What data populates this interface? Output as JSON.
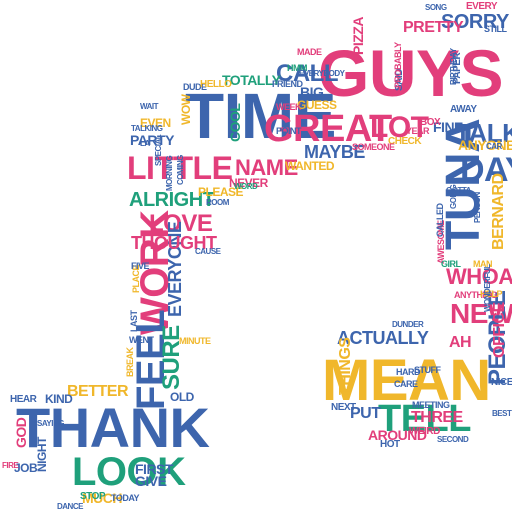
{
  "palette": [
    "#3d65ad",
    "#e23e7b",
    "#f0b72b",
    "#1fa07b",
    "#6b3d98",
    "#e7457a"
  ],
  "words": [
    {
      "text": "TIME",
      "c": 0
    },
    {
      "text": "GUYS",
      "c": 1
    },
    {
      "text": "THANK",
      "c": 0
    },
    {
      "text": "MEAN",
      "c": 2
    },
    {
      "text": "GREAT",
      "c": 1
    },
    {
      "text": "TUNA",
      "c": 0
    },
    {
      "text": "LOT",
      "c": 1
    },
    {
      "text": "LOOK",
      "c": 3
    },
    {
      "text": "WORK",
      "c": 1
    },
    {
      "text": "TELL",
      "c": 3
    },
    {
      "text": "FEEL",
      "c": 0
    },
    {
      "text": "LITTLE",
      "c": 1
    },
    {
      "text": "DAY",
      "c": 0
    },
    {
      "text": "TALK",
      "c": 0
    },
    {
      "text": "NEW",
      "c": 1
    },
    {
      "text": "NAME",
      "c": 1
    },
    {
      "text": "LOVE",
      "c": 1
    },
    {
      "text": "SORRY",
      "c": 0
    },
    {
      "text": "CALL",
      "c": 0
    },
    {
      "text": "WHOA",
      "c": 1
    },
    {
      "text": "PEOPLE",
      "c": 0
    },
    {
      "text": "ACTUALLY",
      "c": 0
    },
    {
      "text": "SURE",
      "c": 3
    },
    {
      "text": "EVERYONE",
      "c": 0
    },
    {
      "text": "ALRIGHT",
      "c": 3
    },
    {
      "text": "THOUGHT",
      "c": 1
    },
    {
      "text": "MAYBE",
      "c": 0
    },
    {
      "text": "PRETTY",
      "c": 1
    },
    {
      "text": "BERNARD",
      "c": 2
    },
    {
      "text": "OFFICE",
      "c": 1
    },
    {
      "text": "PIZZA",
      "c": 1
    },
    {
      "text": "THREE",
      "c": 1
    },
    {
      "text": "PUT",
      "c": 0
    },
    {
      "text": "AROUND",
      "c": 1
    },
    {
      "text": "FIRST",
      "c": 0
    },
    {
      "text": "GIVE",
      "c": 0
    },
    {
      "text": "BETTER",
      "c": 2
    },
    {
      "text": "MUCH",
      "c": 2
    },
    {
      "text": "THINGS",
      "c": 2
    },
    {
      "text": "TOTALLY",
      "c": 3
    },
    {
      "text": "PARTY",
      "c": 0
    },
    {
      "text": "COOL",
      "c": 3
    },
    {
      "text": "ANYONE",
      "c": 2
    },
    {
      "text": "BIG",
      "c": 0
    },
    {
      "text": "GUESS",
      "c": 2
    },
    {
      "text": "WANTED",
      "c": 2
    },
    {
      "text": "PLEASE",
      "c": 2
    },
    {
      "text": "NEVER",
      "c": 1
    },
    {
      "text": "FINE",
      "c": 0
    },
    {
      "text": "KIND",
      "c": 0
    },
    {
      "text": "GOD",
      "c": 1
    },
    {
      "text": "HEAR",
      "c": 0
    },
    {
      "text": "JOB",
      "c": 0
    },
    {
      "text": "NIGHT",
      "c": 0
    },
    {
      "text": "NEXT",
      "c": 0
    },
    {
      "text": "OLD",
      "c": 0
    },
    {
      "text": "EVEN",
      "c": 2
    },
    {
      "text": "DUDE",
      "c": 0
    },
    {
      "text": "HELLO",
      "c": 2
    },
    {
      "text": "FRIEND",
      "c": 0
    },
    {
      "text": "EVERY",
      "c": 1
    },
    {
      "text": "WOW",
      "c": 2
    },
    {
      "text": "CHECK",
      "c": 2
    },
    {
      "text": "POINT",
      "c": 0
    },
    {
      "text": "SOMEONE",
      "c": 1
    },
    {
      "text": "WEEK",
      "c": 1
    },
    {
      "text": "TALKING",
      "c": 0
    },
    {
      "text": "WAIT",
      "c": 0
    },
    {
      "text": "BREAK",
      "c": 2
    },
    {
      "text": "STOP",
      "c": 3
    },
    {
      "text": "ANYTHING",
      "c": 1
    },
    {
      "text": "AWESOME",
      "c": 1
    },
    {
      "text": "CALLED",
      "c": 0
    },
    {
      "text": "HELP",
      "c": 2
    },
    {
      "text": "NICE",
      "c": 0
    },
    {
      "text": "WEIRD",
      "c": 1
    },
    {
      "text": "HOT",
      "c": 0
    },
    {
      "text": "HARD",
      "c": 0
    },
    {
      "text": "CARE",
      "c": 0
    },
    {
      "text": "MEETING",
      "c": 0
    },
    {
      "text": "AWAY",
      "c": 0
    },
    {
      "text": "YEAR",
      "c": 1
    },
    {
      "text": "SAID",
      "c": 0
    },
    {
      "text": "MADE",
      "c": 1
    },
    {
      "text": "HMM",
      "c": 3
    },
    {
      "text": "PROBABLY",
      "c": 1
    },
    {
      "text": "PAPER",
      "c": 0
    },
    {
      "text": "STUFF",
      "c": 0
    },
    {
      "text": "MINUTE",
      "c": 2
    },
    {
      "text": "PLACE",
      "c": 2
    },
    {
      "text": "FIVE",
      "c": 0
    },
    {
      "text": "LAST",
      "c": 0
    },
    {
      "text": "WENT",
      "c": 0
    },
    {
      "text": "GIRL",
      "c": 3
    },
    {
      "text": "MAN",
      "c": 2
    },
    {
      "text": "EVERYBODY",
      "c": 0
    },
    {
      "text": "AH",
      "c": 1
    },
    {
      "text": "SECOND",
      "c": 0
    },
    {
      "text": "FIRE",
      "c": 1
    },
    {
      "text": "DANCE",
      "c": 0
    },
    {
      "text": "TODAY",
      "c": 0
    },
    {
      "text": "CAR",
      "c": 0
    },
    {
      "text": "BOX",
      "c": 1
    },
    {
      "text": "LA",
      "c": 0
    },
    {
      "text": "CAUSE",
      "c": 0
    },
    {
      "text": "GOTTA",
      "c": 0
    },
    {
      "text": "GOING",
      "c": 0
    },
    {
      "text": "COMING",
      "c": 0
    },
    {
      "text": "MORNING",
      "c": 0
    },
    {
      "text": "SPECIAL",
      "c": 0
    },
    {
      "text": "PERSON",
      "c": 0
    },
    {
      "text": "WORD",
      "c": 3
    },
    {
      "text": "ROOM",
      "c": 0
    },
    {
      "text": "DUNDER",
      "c": 0
    },
    {
      "text": "WONDERFUL",
      "c": 0
    },
    {
      "text": "BIRTHDAY",
      "c": 0
    },
    {
      "text": "SONG",
      "c": 0
    },
    {
      "text": "STILL",
      "c": 0
    },
    {
      "text": "BEST",
      "c": 0
    },
    {
      "text": "SAYING",
      "c": 0
    }
  ]
}
